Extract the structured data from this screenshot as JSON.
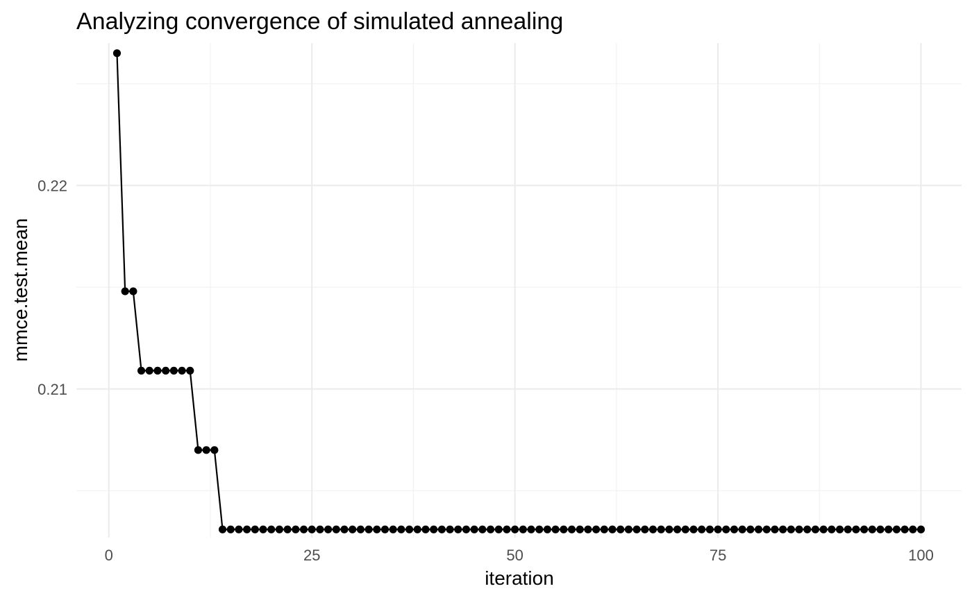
{
  "chart_data": {
    "type": "line",
    "title": "Analyzing convergence of simulated annealing",
    "xlabel": "iteration",
    "ylabel": "mmce.test.mean",
    "xlim": [
      -4,
      105
    ],
    "ylim": [
      0.2027,
      0.227
    ],
    "x_ticks": [
      0,
      25,
      50,
      75,
      100
    ],
    "x_tick_labels": [
      "0",
      "25",
      "50",
      "75",
      "100"
    ],
    "x_minor_ticks": [
      12.5,
      37.5,
      62.5,
      87.5
    ],
    "y_ticks": [
      0.21,
      0.22
    ],
    "y_tick_labels": [
      "0.21",
      "0.22"
    ],
    "y_minor_ticks": [
      0.205,
      0.215,
      0.225
    ],
    "grid": true,
    "legend": "none",
    "series": [
      {
        "segments": [
          {
            "from": 1,
            "to": 1,
            "y": 0.2265
          },
          {
            "from": 2,
            "to": 3,
            "y": 0.2148
          },
          {
            "from": 4,
            "to": 10,
            "y": 0.2109
          },
          {
            "from": 11,
            "to": 13,
            "y": 0.207
          },
          {
            "from": 14,
            "to": 100,
            "y": 0.2031
          }
        ]
      }
    ]
  }
}
